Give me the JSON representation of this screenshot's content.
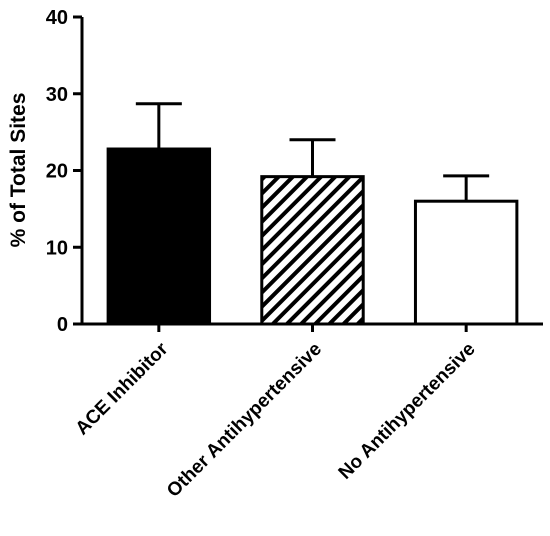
{
  "chart_data": {
    "type": "bar",
    "title": "",
    "xlabel": "",
    "ylabel": "% of Total Sites",
    "ylim": [
      0,
      40
    ],
    "yticks": [
      "0",
      "10",
      "20",
      "30",
      "40"
    ],
    "ytick_values": [
      0,
      10,
      20,
      30,
      40
    ],
    "grid": false,
    "categories": [
      "ACE Inhibitor",
      "Other Antihypertensive",
      "No Antihypertensive"
    ],
    "values": [
      22.8,
      19.2,
      16.0
    ],
    "error_upper": [
      28.7,
      24.0,
      19.3
    ],
    "bar_fills": [
      "solid",
      "hatched",
      "empty"
    ],
    "colors": {
      "bar_stroke": "#000000",
      "solid_fill": "#000000",
      "empty_fill": "#ffffff"
    }
  }
}
